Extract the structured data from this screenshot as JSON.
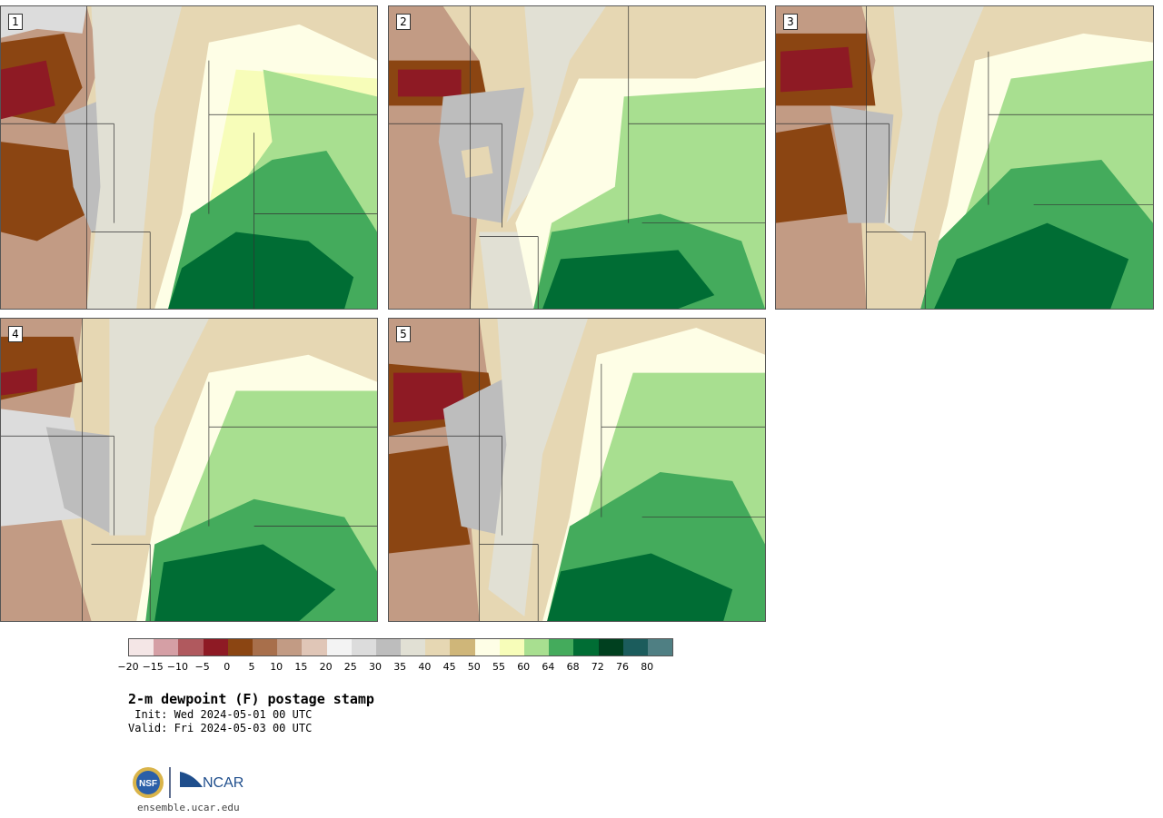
{
  "panels": [
    {
      "label": "1"
    },
    {
      "label": "2"
    },
    {
      "label": "3"
    },
    {
      "label": "4"
    },
    {
      "label": "5"
    }
  ],
  "colorbar": {
    "colors": [
      "#f4e6e6",
      "#d59fa5",
      "#b0595e",
      "#8e1a24",
      "#8b4512",
      "#a86f4b",
      "#c29b84",
      "#e0c6b7",
      "#f3f3f3",
      "#dcdcdc",
      "#bdbdbd",
      "#e1e0d4",
      "#e6d7b3",
      "#cfb679",
      "#fefee6",
      "#f7fdb9",
      "#a8df90",
      "#44ab5c",
      "#006d34",
      "#00401f",
      "#1b5c5c",
      "#4f7f83"
    ],
    "tick_labels": [
      "-20",
      "-15",
      "-10",
      "-5",
      "0",
      "5",
      "10",
      "15",
      "20",
      "25",
      "30",
      "35",
      "40",
      "45",
      "50",
      "55",
      "60",
      "64",
      "68",
      "72",
      "76",
      "80"
    ]
  },
  "title": "2-m dewpoint (F) postage stamp",
  "init": " Init: Wed 2024-05-01 00 UTC",
  "valid": "Valid: Fri 2024-05-03 00 UTC",
  "logos": {
    "nsf": "NSF",
    "ncar": "NCAR"
  },
  "site": "ensemble.ucar.edu"
}
